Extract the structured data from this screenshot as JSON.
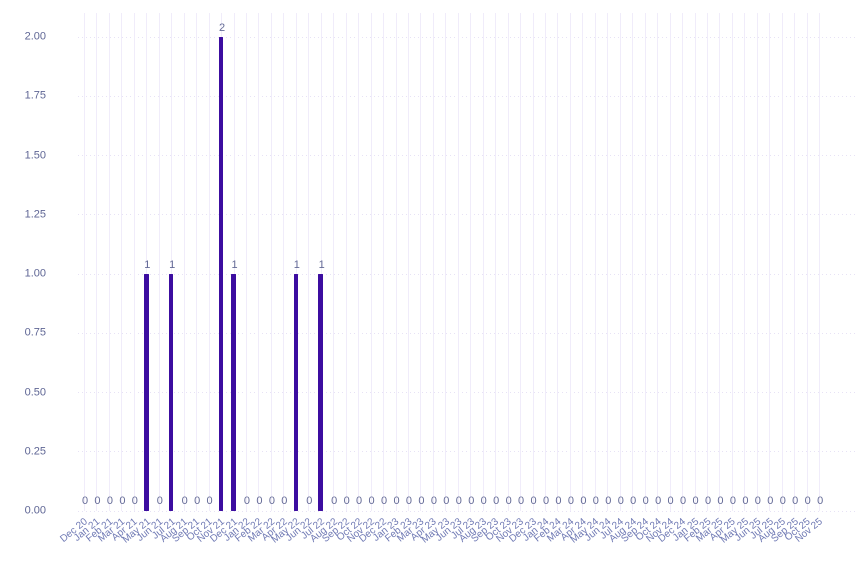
{
  "chart_data": {
    "type": "bar",
    "title": "",
    "xlabel": "",
    "ylabel": "",
    "categories": [
      "Dec 20",
      "Jan 21",
      "Feb 21",
      "Mar 21",
      "Apr 21",
      "May 21",
      "Jun 21",
      "Jul 21",
      "Aug 21",
      "Sep 21",
      "Oct 21",
      "Nov 21",
      "Dec 21",
      "Jan 22",
      "Feb 22",
      "Mar 22",
      "Apr 22",
      "May 22",
      "Jun 22",
      "Jul 22",
      "Aug 22",
      "Sep 22",
      "Oct 22",
      "Nov 22",
      "Dec 22",
      "Jan 23",
      "Feb 23",
      "Mar 23",
      "Apr 23",
      "May 23",
      "Jun 23",
      "Jul 23",
      "Aug 23",
      "Sep 23",
      "Oct 23",
      "Nov 23",
      "Dec 23",
      "Jan 24",
      "Feb 24",
      "Mar 24",
      "Apr 24",
      "May 24",
      "Jun 24",
      "Jul 24",
      "Aug 24",
      "Sep 24",
      "Oct 24",
      "Nov 24",
      "Dec 24",
      "Jan 25",
      "Feb 25",
      "Mar 25",
      "Apr 25",
      "May 25",
      "Jun 25",
      "Jul 25",
      "Aug 25",
      "Sep 25",
      "Oct 25",
      "Nov 25"
    ],
    "values": [
      0,
      0,
      0,
      0,
      0,
      1,
      0,
      1,
      0,
      0,
      0,
      2,
      1,
      0,
      0,
      0,
      0,
      1,
      0,
      1,
      0,
      0,
      0,
      0,
      0,
      0,
      0,
      0,
      0,
      0,
      0,
      0,
      0,
      0,
      0,
      0,
      0,
      0,
      0,
      0,
      0,
      0,
      0,
      0,
      0,
      0,
      0,
      0,
      0,
      0,
      0,
      0,
      0,
      0,
      0,
      0,
      0,
      0,
      0,
      0
    ],
    "value_labels_shown": true,
    "y_ticks": [
      "0.00",
      "0.25",
      "0.50",
      "0.75",
      "1.00",
      "1.25",
      "1.50",
      "1.75",
      "2.00"
    ],
    "ylim": [
      0,
      2.1
    ],
    "grid": true,
    "legend": "none",
    "colors": {
      "bar": "#3c0da0",
      "value_label_text": "#646b96",
      "y_tick_text": "#5f6695",
      "x_tick_text": "#6f79b4",
      "vertical_grid": "#f0ecfa",
      "horizontal_grid": "#e7e2f5",
      "background": "#ffffff"
    }
  }
}
